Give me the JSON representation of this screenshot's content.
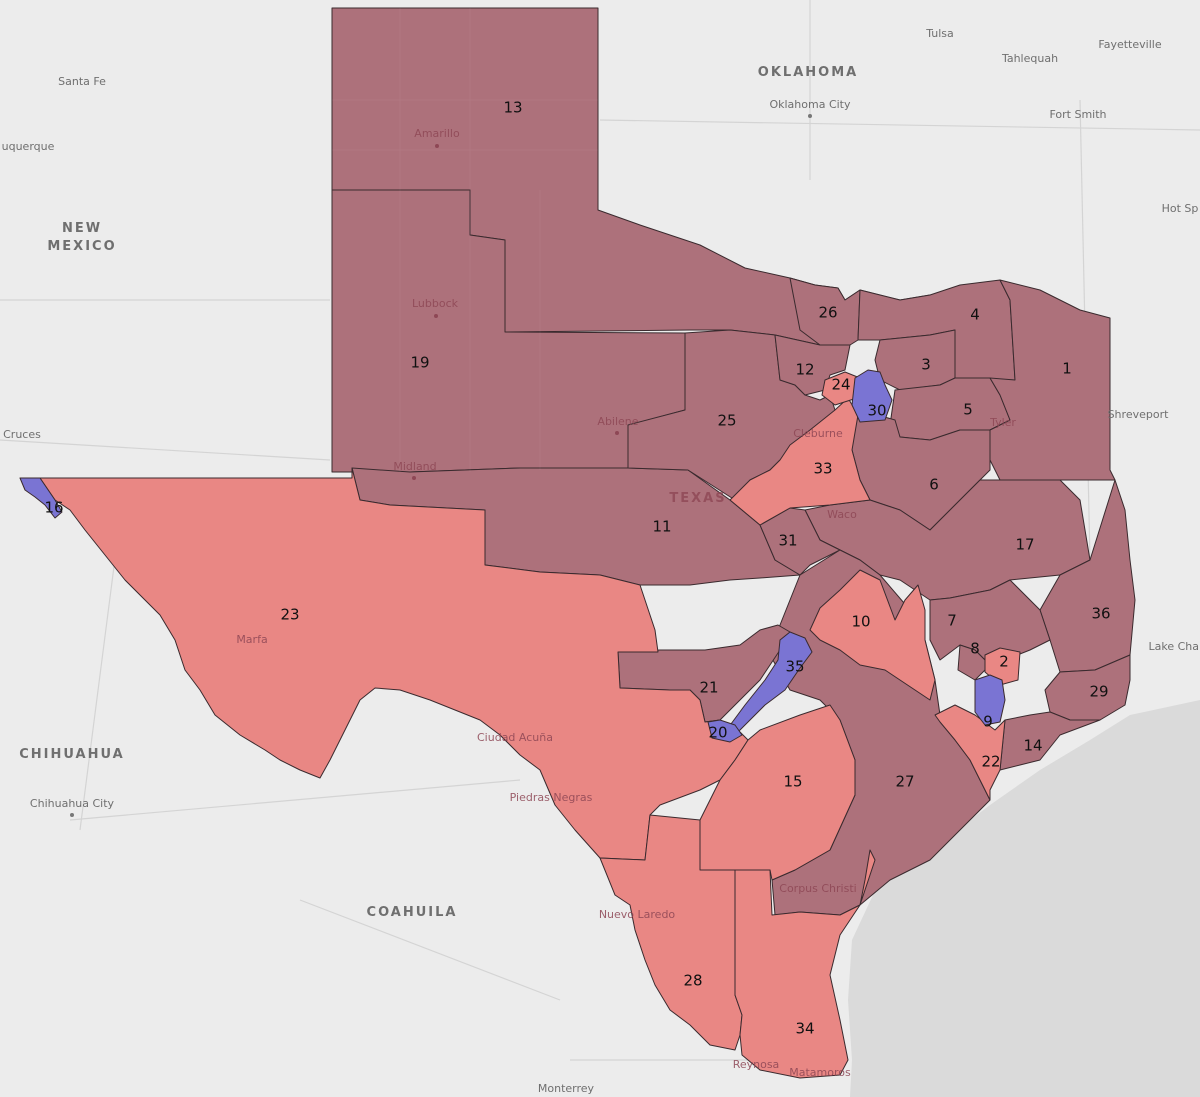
{
  "colors": {
    "background": "#ececec",
    "water": "#dadada",
    "solid_republican": "#ad717b",
    "lean_republican": "#e98784",
    "democratic": "#7a74d3",
    "border": "#3a2a2e"
  },
  "regions": {
    "oklahoma": "OKLAHOMA",
    "new_mexico_line1": "NEW",
    "new_mexico_line2": "MEXICO",
    "chihuahua": "CHIHUAHUA",
    "coahuila": "COAHUILA",
    "texas": "TEXAS"
  },
  "outside_cities": {
    "tulsa": "Tulsa",
    "tahlequah": "Tahlequah",
    "fayetteville": "Fayetteville",
    "oklahoma_city": "Oklahoma City",
    "fort_smith": "Fort Smith",
    "hot_springs": "Hot Sp",
    "santa_fe": "Santa Fe",
    "albuquerque": "uquerque",
    "las_cruces": "Cruces",
    "shreveport": "Shreveport",
    "lake_charles": "Lake Char",
    "chihuahua_city": "Chihuahua City",
    "monterrey": "Monterrey"
  },
  "inside_cities": {
    "amarillo": "Amarillo",
    "lubbock": "Lubbock",
    "abilene": "Abilene",
    "midland": "Midland",
    "cleburne": "Cleburne",
    "waco": "Waco",
    "tyler": "Tyler",
    "marfa": "Marfa",
    "ciudad_acuna": "Ciudad Acuña",
    "piedras_negras": "Piedras Negras",
    "nuevo_laredo": "Nuevo Laredo",
    "corpus_christi": "Corpus Christi",
    "reynosa": "Reynosa",
    "matamoros": "Matamoros"
  },
  "districts": [
    {
      "id": "13",
      "label": "13",
      "lean": "solid"
    },
    {
      "id": "19",
      "label": "19",
      "lean": "solid"
    },
    {
      "id": "11",
      "label": "11",
      "lean": "solid"
    },
    {
      "id": "25",
      "label": "25",
      "lean": "solid"
    },
    {
      "id": "12",
      "label": "12",
      "lean": "solid"
    },
    {
      "id": "26",
      "label": "26",
      "lean": "solid"
    },
    {
      "id": "4",
      "label": "4",
      "lean": "solid"
    },
    {
      "id": "3",
      "label": "3",
      "lean": "solid"
    },
    {
      "id": "5",
      "label": "5",
      "lean": "solid"
    },
    {
      "id": "1",
      "label": "1",
      "lean": "solid"
    },
    {
      "id": "6",
      "label": "6",
      "lean": "solid"
    },
    {
      "id": "17",
      "label": "17",
      "lean": "solid"
    },
    {
      "id": "31",
      "label": "31",
      "lean": "solid"
    },
    {
      "id": "36",
      "label": "36",
      "lean": "solid"
    },
    {
      "id": "29",
      "label": "29",
      "lean": "solid"
    },
    {
      "id": "7",
      "label": "7",
      "lean": "solid"
    },
    {
      "id": "8",
      "label": "8",
      "lean": "solid"
    },
    {
      "id": "14",
      "label": "14",
      "lean": "solid"
    },
    {
      "id": "27",
      "label": "27",
      "lean": "solid"
    },
    {
      "id": "21",
      "label": "21",
      "lean": "solid"
    },
    {
      "id": "23",
      "label": "23",
      "lean": "lean"
    },
    {
      "id": "33",
      "label": "33",
      "lean": "lean"
    },
    {
      "id": "24",
      "label": "24",
      "lean": "lean"
    },
    {
      "id": "10",
      "label": "10",
      "lean": "lean"
    },
    {
      "id": "2",
      "label": "2",
      "lean": "lean"
    },
    {
      "id": "22",
      "label": "22",
      "lean": "lean"
    },
    {
      "id": "15",
      "label": "15",
      "lean": "lean"
    },
    {
      "id": "28",
      "label": "28",
      "lean": "lean"
    },
    {
      "id": "34",
      "label": "34",
      "lean": "lean"
    },
    {
      "id": "16",
      "label": "16",
      "lean": "dem"
    },
    {
      "id": "30",
      "label": "30",
      "lean": "dem"
    },
    {
      "id": "35",
      "label": "35",
      "lean": "dem"
    },
    {
      "id": "20",
      "label": "20",
      "lean": "dem"
    },
    {
      "id": "9",
      "label": "9",
      "lean": "dem"
    }
  ]
}
